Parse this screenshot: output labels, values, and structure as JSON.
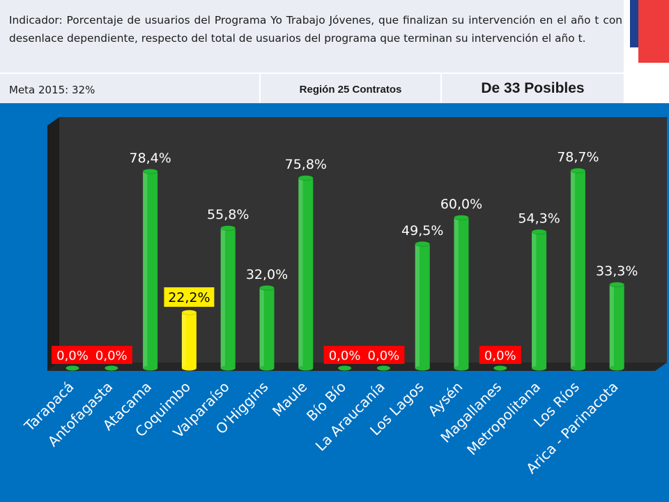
{
  "header": {
    "indicator": "Indicador: Porcentaje de usuarios del Programa Yo Trabajo Jóvenes, que finalizan su intervención en el año t con desenlace dependiente, respecto del total de usuarios del programa que terminan su intervención el año t.",
    "meta": "Meta 2015: 32%",
    "region_contracts": "Región 25 Contratos",
    "possible": "De 33 Posibles"
  },
  "colors": {
    "background": "#0070c0",
    "header_box": "#eaeef4",
    "bar_default": "#22bb33",
    "bar_highlight": "#ffee00",
    "zero_label_bg": "#ff0000",
    "plot_back": "#333333"
  },
  "chart_data": {
    "type": "bar",
    "categories": [
      "Tarapacá",
      "Antofagasta",
      "Atacama",
      "Coquimbo",
      "Valparaíso",
      "O'Higgins",
      "Maule",
      "Bío Bío",
      "La Araucanía",
      "Los Lagos",
      "Aysén",
      "Magallanes",
      "Metropolitana",
      "Los Ríos",
      "Arica - Parinacota"
    ],
    "values": [
      0.0,
      0.0,
      78.4,
      22.2,
      55.8,
      32.0,
      75.8,
      0.0,
      0.0,
      49.5,
      60.0,
      0.0,
      54.3,
      78.7,
      33.3
    ],
    "labels": [
      "0,0%",
      "0,0%",
      "78,4%",
      "22,2%",
      "55,8%",
      "32,0%",
      "75,8%",
      "0,0%",
      "0,0%",
      "49,5%",
      "60,0%",
      "0,0%",
      "54,3%",
      "78,7%",
      "33,3%"
    ],
    "highlight_category": "Coquimbo",
    "title": "",
    "xlabel": "",
    "ylabel": "",
    "ylim": [
      0,
      100
    ],
    "grid": false,
    "legend": "none",
    "style": "3d-cylinder"
  }
}
